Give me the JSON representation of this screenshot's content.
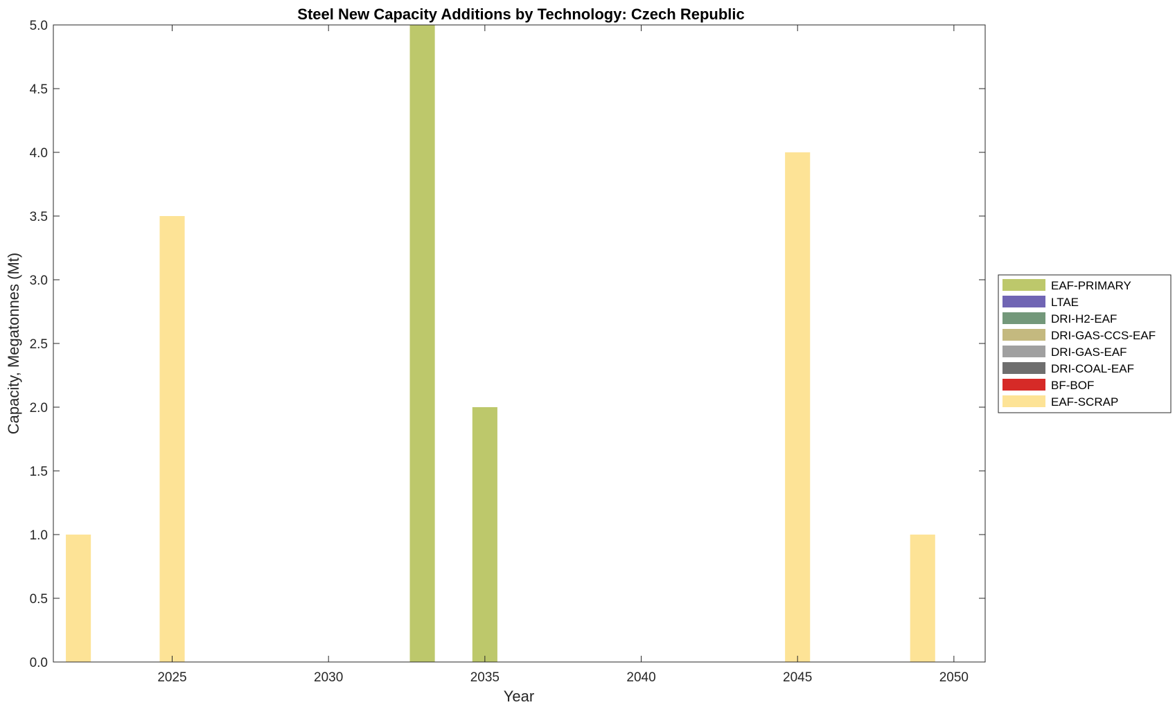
{
  "chart_data": {
    "type": "bar",
    "title": "Steel New Capacity Additions by Technology: Czech Republic",
    "xlabel": "Year",
    "ylabel": "Capacity, Megatonnes (Mt)",
    "xlim": [
      2021.2,
      2051
    ],
    "ylim": [
      0,
      5
    ],
    "xticks": [
      2025,
      2030,
      2035,
      2040,
      2045,
      2050
    ],
    "yticks": [
      0.0,
      0.5,
      1.0,
      1.5,
      2.0,
      2.5,
      3.0,
      3.5,
      4.0,
      4.5,
      5.0
    ],
    "ytick_labels": [
      "0.0",
      "0.5",
      "1.0",
      "1.5",
      "2.0",
      "2.5",
      "3.0",
      "3.5",
      "4.0",
      "4.5",
      "5.0"
    ],
    "bar_width_years": 0.8,
    "stacked": true,
    "grid": false,
    "legend_position": "outside-right",
    "series": [
      {
        "name": "EAF-PRIMARY",
        "color": "#bdc86b",
        "points": [
          {
            "x": 2033,
            "y": 5.0
          },
          {
            "x": 2035,
            "y": 2.0
          }
        ]
      },
      {
        "name": "LTAE",
        "color": "#7065b4",
        "points": []
      },
      {
        "name": "DRI-H2-EAF",
        "color": "#73987a",
        "points": []
      },
      {
        "name": "DRI-GAS-CCS-EAF",
        "color": "#c4b97f",
        "points": []
      },
      {
        "name": "DRI-GAS-EAF",
        "color": "#a0a0a0",
        "points": []
      },
      {
        "name": "DRI-COAL-EAF",
        "color": "#6e6e6e",
        "points": []
      },
      {
        "name": "BF-BOF",
        "color": "#d62a27",
        "points": []
      },
      {
        "name": "EAF-SCRAP",
        "color": "#fde396",
        "points": [
          {
            "x": 2022,
            "y": 1.0
          },
          {
            "x": 2025,
            "y": 3.5
          },
          {
            "x": 2045,
            "y": 4.0
          },
          {
            "x": 2049,
            "y": 1.0
          }
        ]
      }
    ]
  }
}
